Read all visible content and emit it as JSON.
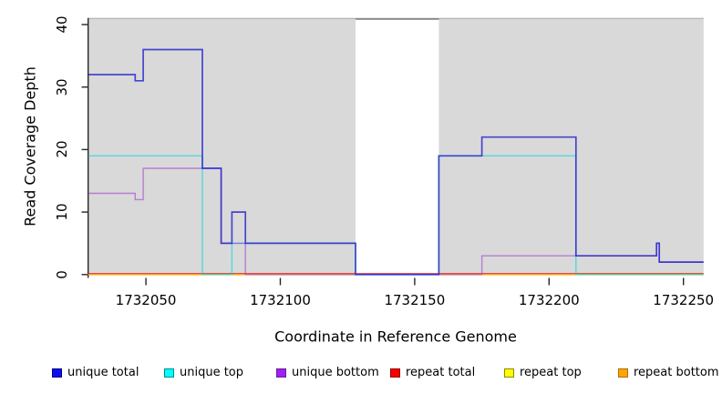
{
  "chart_data": {
    "type": "line",
    "subtype": "step-coverage",
    "title": "",
    "xlabel": "Coordinate in Reference Genome",
    "ylabel": "Read Coverage Depth",
    "x_range": [
      1732028.5,
      1732257.5
    ],
    "y_range": [
      0,
      41
    ],
    "x_ticks": [
      1732050,
      1732100,
      1732150,
      1732200,
      1732250
    ],
    "y_ticks": [
      0,
      10,
      20,
      30,
      40
    ],
    "grid": false,
    "plot_background_color": "#d9d9d9",
    "no_data_region": {
      "x_start": 1732128,
      "x_end": 1732159
    },
    "legend_position": "bottom",
    "series": [
      {
        "name": "repeat total",
        "color": "#dd2020",
        "points": [
          [
            1732028.5,
            0
          ],
          [
            1732257.5,
            0
          ]
        ]
      },
      {
        "name": "repeat top",
        "color": "#ffff00",
        "points": [
          [
            1732028.5,
            0
          ],
          [
            1732257.5,
            0
          ]
        ]
      },
      {
        "name": "repeat bottom",
        "color": "#ff9d0f",
        "points": [
          [
            1732028.5,
            0
          ],
          [
            1732257.5,
            0
          ]
        ]
      },
      {
        "name": "unique top",
        "color": "#00d8e0",
        "points": [
          [
            1732028.5,
            19
          ],
          [
            1732071,
            19
          ],
          [
            1732071,
            0
          ],
          [
            1732082,
            0
          ],
          [
            1732082,
            5
          ],
          [
            1732128,
            5
          ],
          [
            1732128,
            0
          ],
          [
            1732159,
            0
          ],
          [
            1732159,
            19
          ],
          [
            1732210,
            19
          ],
          [
            1732210,
            0
          ],
          [
            1732257.5,
            0
          ]
        ]
      },
      {
        "name": "unique bottom",
        "color": "#9932cc",
        "points": [
          [
            1732028.5,
            13
          ],
          [
            1732046,
            13
          ],
          [
            1732046,
            12
          ],
          [
            1732049,
            12
          ],
          [
            1732049,
            17
          ],
          [
            1732078,
            17
          ],
          [
            1732078,
            5
          ],
          [
            1732087,
            5
          ],
          [
            1732087,
            0
          ],
          [
            1732175,
            0
          ],
          [
            1732175,
            3
          ],
          [
            1732240,
            3
          ],
          [
            1732240,
            5
          ],
          [
            1732241,
            5
          ],
          [
            1732241,
            2
          ],
          [
            1732257.5,
            2
          ]
        ]
      },
      {
        "name": "unique total",
        "color": "#2a2acd",
        "points": [
          [
            1732028.5,
            32
          ],
          [
            1732046,
            32
          ],
          [
            1732046,
            31
          ],
          [
            1732049,
            31
          ],
          [
            1732049,
            36
          ],
          [
            1732071,
            36
          ],
          [
            1732071,
            17
          ],
          [
            1732078,
            17
          ],
          [
            1732078,
            5
          ],
          [
            1732082,
            5
          ],
          [
            1732082,
            10
          ],
          [
            1732087,
            10
          ],
          [
            1732087,
            5
          ],
          [
            1732128,
            5
          ],
          [
            1732128,
            0
          ],
          [
            1732159,
            0
          ],
          [
            1732159,
            19
          ],
          [
            1732175,
            19
          ],
          [
            1732175,
            22
          ],
          [
            1732210,
            22
          ],
          [
            1732210,
            3
          ],
          [
            1732240,
            3
          ],
          [
            1732240,
            5
          ],
          [
            1732241,
            5
          ],
          [
            1732241,
            2
          ],
          [
            1732257.5,
            2
          ]
        ]
      }
    ]
  },
  "legend": {
    "items": [
      {
        "label": "unique total",
        "fill": "#0d0df2",
        "border": "#000080"
      },
      {
        "label": "unique top",
        "fill": "#00ffff",
        "border": "#008b8b"
      },
      {
        "label": "unique bottom",
        "fill": "#a020f0",
        "border": "#6a1b9a"
      },
      {
        "label": "repeat total",
        "fill": "#ff0000",
        "border": "#8b0000"
      },
      {
        "label": "repeat top",
        "fill": "#ffff00",
        "border": "#8b8b00"
      },
      {
        "label": "repeat bottom",
        "fill": "#ffa500",
        "border": "#b36b00"
      }
    ]
  }
}
